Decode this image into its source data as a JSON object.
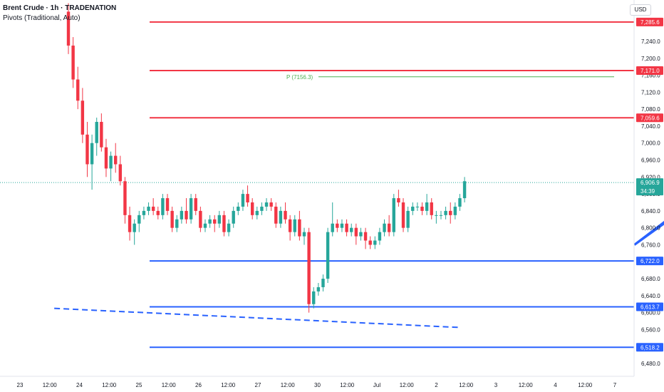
{
  "header": {
    "title": "Brent Crude · 1h · TRADENATION",
    "subtitle": "Pivots (Traditional, Auto)",
    "currency": "USD"
  },
  "chart_data": {
    "type": "candlestick",
    "ylim": [
      6460,
      7320
    ],
    "y_ticks": [
      6480,
      6520,
      6560,
      6600,
      6640,
      6680,
      6720,
      6760,
      6800,
      6840,
      6880,
      6920,
      6960,
      7000,
      7040,
      7080,
      7120,
      7160,
      7200,
      7240
    ],
    "x_ticks": [
      "23",
      "12:00",
      "24",
      "12:00",
      "25",
      "12:00",
      "26",
      "12:00",
      "27",
      "12:00",
      "30",
      "12:00",
      "Jul",
      "12:00",
      "2",
      "12:00",
      "3",
      "12:00",
      "4",
      "12:00",
      "7"
    ],
    "current_price": {
      "value": 6906.9,
      "label": "6,906.9",
      "countdown": "34:39",
      "color": "#26a69a"
    },
    "resistance_levels": [
      {
        "value": 7285.6,
        "label": "7,285.6",
        "color": "#f23645"
      },
      {
        "value": 7171.0,
        "label": "7,171.0",
        "color": "#f23645"
      },
      {
        "value": 7059.6,
        "label": "7,059.6",
        "color": "#f23645"
      }
    ],
    "support_levels": [
      {
        "value": 6722.0,
        "label": "6,722.0",
        "color": "#2962ff"
      },
      {
        "value": 6613.7,
        "label": "6,613.7",
        "color": "#2962ff"
      },
      {
        "value": 6518.2,
        "label": "6,518.2",
        "color": "#2962ff"
      }
    ],
    "pivot": {
      "value": 7156.3,
      "label": "P (7156.3)",
      "color": "#4caf50"
    },
    "arrow": {
      "from": {
        "x": 120,
        "y": 6760
      },
      "to": {
        "x": 148,
        "y": 6990
      },
      "color": "#2962ff"
    },
    "trendline": {
      "from": {
        "x": -3,
        "y": 6610
      },
      "to": {
        "x": 83,
        "y": 6565
      },
      "color": "#2962ff"
    },
    "colors": {
      "up": "#26a69a",
      "down": "#f23645"
    },
    "candles": [
      [
        7310,
        7330,
        7210,
        7230
      ],
      [
        7230,
        7250,
        7130,
        7150
      ],
      [
        7150,
        7180,
        7080,
        7100
      ],
      [
        7100,
        7130,
        7000,
        7020
      ],
      [
        7020,
        7050,
        6920,
        6950
      ],
      [
        6950,
        7020,
        6890,
        7000
      ],
      [
        7000,
        7060,
        6970,
        7050
      ],
      [
        7050,
        7070,
        6980,
        6990
      ],
      [
        6990,
        7010,
        6920,
        6940
      ],
      [
        6940,
        6980,
        6910,
        6970
      ],
      [
        6970,
        7000,
        6930,
        6950
      ],
      [
        6950,
        6970,
        6900,
        6910
      ],
      [
        6910,
        6920,
        6810,
        6830
      ],
      [
        6830,
        6850,
        6770,
        6790
      ],
      [
        6790,
        6820,
        6760,
        6810
      ],
      [
        6810,
        6840,
        6790,
        6830
      ],
      [
        6830,
        6850,
        6820,
        6840
      ],
      [
        6840,
        6860,
        6830,
        6850
      ],
      [
        6850,
        6870,
        6830,
        6840
      ],
      [
        6840,
        6850,
        6820,
        6830
      ],
      [
        6830,
        6880,
        6820,
        6870
      ],
      [
        6870,
        6880,
        6830,
        6840
      ],
      [
        6840,
        6850,
        6790,
        6800
      ],
      [
        6800,
        6830,
        6790,
        6820
      ],
      [
        6820,
        6850,
        6810,
        6840
      ],
      [
        6840,
        6870,
        6810,
        6820
      ],
      [
        6820,
        6880,
        6810,
        6870
      ],
      [
        6870,
        6880,
        6830,
        6840
      ],
      [
        6840,
        6850,
        6790,
        6800
      ],
      [
        6800,
        6820,
        6790,
        6810
      ],
      [
        6810,
        6830,
        6800,
        6820
      ],
      [
        6820,
        6830,
        6790,
        6810
      ],
      [
        6810,
        6840,
        6800,
        6830
      ],
      [
        6830,
        6840,
        6780,
        6790
      ],
      [
        6790,
        6820,
        6780,
        6810
      ],
      [
        6810,
        6850,
        6800,
        6840
      ],
      [
        6840,
        6860,
        6830,
        6850
      ],
      [
        6850,
        6890,
        6840,
        6880
      ],
      [
        6880,
        6900,
        6850,
        6860
      ],
      [
        6860,
        6870,
        6820,
        6830
      ],
      [
        6830,
        6850,
        6820,
        6840
      ],
      [
        6840,
        6860,
        6830,
        6850
      ],
      [
        6850,
        6870,
        6840,
        6860
      ],
      [
        6860,
        6870,
        6840,
        6850
      ],
      [
        6850,
        6860,
        6800,
        6810
      ],
      [
        6810,
        6850,
        6800,
        6840
      ],
      [
        6840,
        6860,
        6810,
        6820
      ],
      [
        6820,
        6830,
        6770,
        6790
      ],
      [
        6790,
        6830,
        6780,
        6820
      ],
      [
        6820,
        6840,
        6770,
        6780
      ],
      [
        6780,
        6800,
        6760,
        6790
      ],
      [
        6790,
        6800,
        6600,
        6620
      ],
      [
        6620,
        6660,
        6610,
        6650
      ],
      [
        6650,
        6670,
        6640,
        6660
      ],
      [
        6660,
        6690,
        6650,
        6680
      ],
      [
        6680,
        6800,
        6670,
        6790
      ],
      [
        6790,
        6860,
        6780,
        6810
      ],
      [
        6810,
        6820,
        6790,
        6800
      ],
      [
        6800,
        6820,
        6790,
        6810
      ],
      [
        6810,
        6820,
        6780,
        6790
      ],
      [
        6790,
        6810,
        6780,
        6800
      ],
      [
        6800,
        6810,
        6760,
        6780
      ],
      [
        6780,
        6800,
        6770,
        6790
      ],
      [
        6790,
        6800,
        6750,
        6770
      ],
      [
        6770,
        6780,
        6750,
        6760
      ],
      [
        6760,
        6780,
        6750,
        6770
      ],
      [
        6770,
        6800,
        6760,
        6790
      ],
      [
        6790,
        6820,
        6780,
        6810
      ],
      [
        6810,
        6830,
        6780,
        6790
      ],
      [
        6790,
        6880,
        6780,
        6870
      ],
      [
        6870,
        6890,
        6850,
        6860
      ],
      [
        6860,
        6870,
        6790,
        6800
      ],
      [
        6800,
        6850,
        6790,
        6840
      ],
      [
        6840,
        6860,
        6830,
        6850
      ],
      [
        6850,
        6860,
        6840,
        6850
      ],
      [
        6850,
        6860,
        6830,
        6840
      ],
      [
        6840,
        6880,
        6830,
        6860
      ],
      [
        6860,
        6870,
        6820,
        6830
      ],
      [
        6830,
        6840,
        6810,
        6830
      ],
      [
        6830,
        6840,
        6820,
        6830
      ],
      [
        6830,
        6850,
        6820,
        6840
      ],
      [
        6840,
        6860,
        6810,
        6830
      ],
      [
        6830,
        6860,
        6820,
        6850
      ],
      [
        6850,
        6880,
        6840,
        6870
      ],
      [
        6870,
        6920,
        6860,
        6910
      ]
    ]
  }
}
